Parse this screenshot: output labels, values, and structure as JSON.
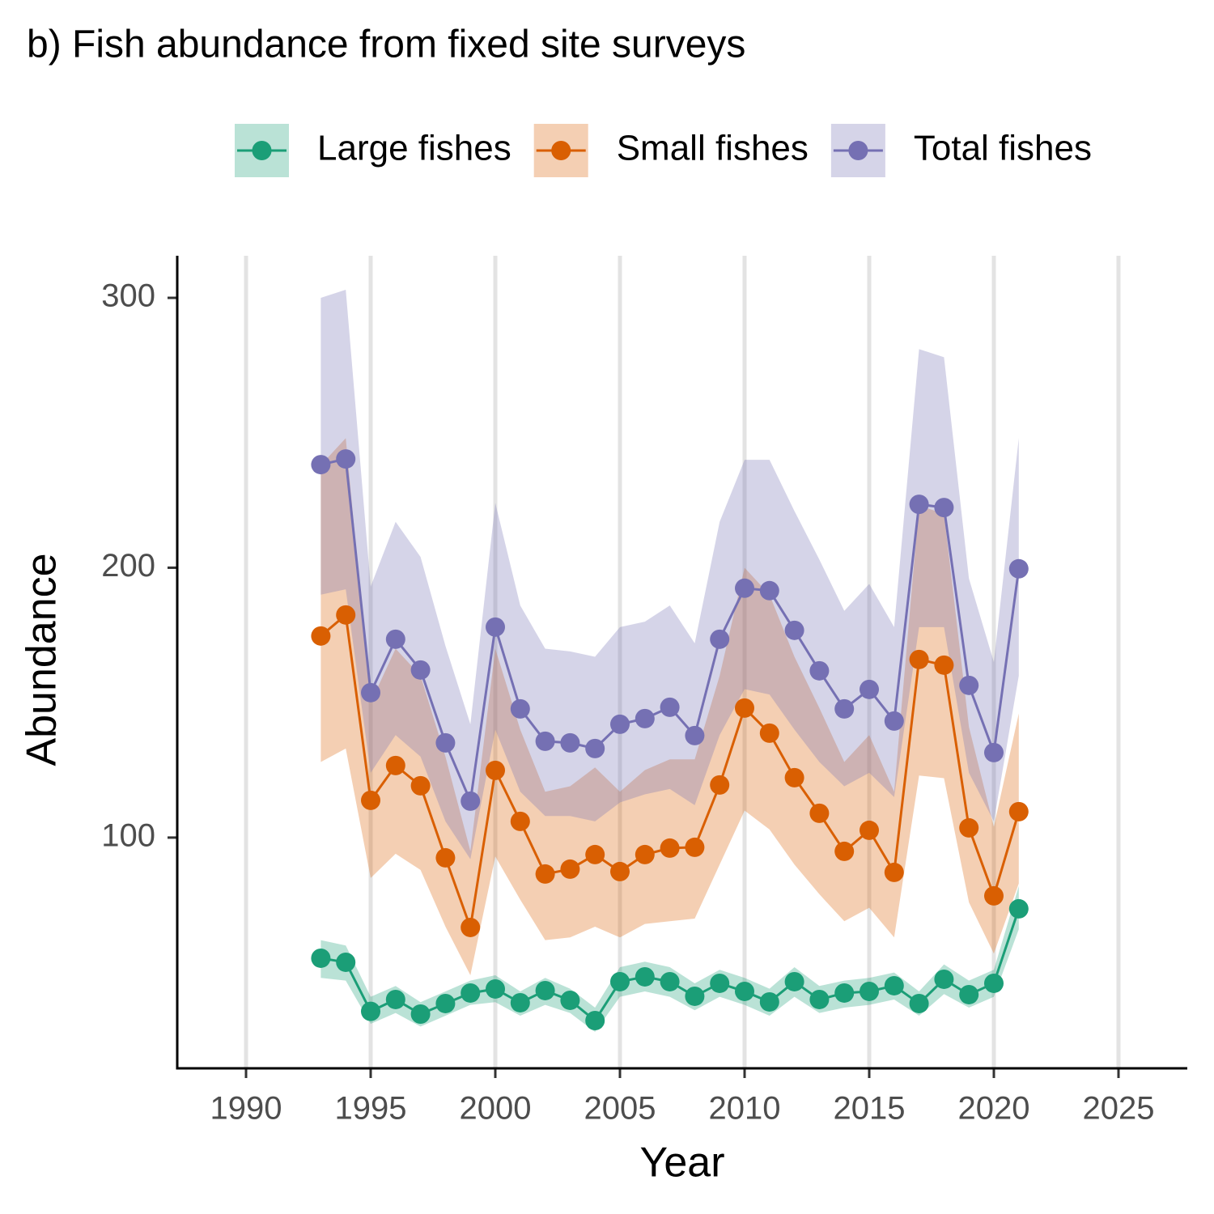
{
  "chart_data": {
    "type": "line",
    "title": "b) Fish abundance from fixed site surveys",
    "x_label": "Year",
    "y_label": "Abundance",
    "x": [
      1993,
      1994,
      1995,
      1996,
      1997,
      1998,
      1999,
      2000,
      2001,
      2002,
      2003,
      2004,
      2005,
      2006,
      2007,
      2008,
      2009,
      2010,
      2011,
      2012,
      2013,
      2014,
      2015,
      2016,
      2017,
      2018,
      2019,
      2020,
      2021
    ],
    "series": [
      {
        "name": "Large fishes",
        "color": "#1b9e77",
        "values": [
          55.3,
          53.8,
          35.6,
          40.0,
          34.6,
          38.5,
          42.4,
          43.9,
          38.8,
          43.3,
          39.7,
          32.2,
          46.6,
          48.4,
          46.6,
          41.2,
          46.0,
          43.0,
          39.1,
          46.6,
          40.0,
          42.4,
          43.0,
          45.1,
          38.5,
          47.5,
          41.8,
          46.0,
          73.6
        ],
        "upper": [
          62,
          60,
          41,
          45,
          39,
          43,
          47,
          49,
          43,
          48,
          44,
          37,
          52,
          54,
          52,
          46,
          51,
          48,
          44,
          52,
          45,
          47,
          48,
          50,
          43,
          53,
          47,
          51,
          82
        ],
        "lower": [
          48,
          47,
          31,
          35,
          30,
          34,
          38,
          39,
          34,
          38,
          35,
          28,
          41,
          43,
          41,
          36,
          41,
          38,
          34,
          41,
          35,
          37,
          38,
          40,
          34,
          42,
          37,
          41,
          66
        ]
      },
      {
        "name": "Small fishes",
        "color": "#d95f02",
        "values": [
          174.7,
          182.5,
          113.8,
          126.7,
          119.2,
          92.5,
          66.7,
          124.9,
          106.0,
          86.5,
          88.3,
          93.7,
          87.4,
          93.7,
          96.1,
          96.4,
          119.5,
          148.0,
          138.7,
          122.2,
          109.0,
          94.9,
          102.7,
          87.1,
          166.0,
          163.9,
          103.6,
          78.4,
          109.6
        ],
        "upper": [
          238,
          248,
          150,
          170,
          160,
          130,
          95,
          170,
          140,
          117,
          119,
          126,
          117,
          125,
          129,
          129,
          160,
          200,
          190,
          167,
          148,
          128,
          138,
          117,
          223,
          220,
          141,
          104,
          146
        ],
        "lower": [
          128,
          133,
          85,
          94,
          88,
          67,
          49,
          93,
          77,
          62,
          63,
          67,
          63,
          68,
          69,
          70,
          90,
          110,
          103,
          90,
          79,
          69,
          74,
          63,
          123,
          122,
          76,
          57,
          83
        ]
      },
      {
        "name": "Total fishes",
        "color": "#7570b3",
        "values": [
          238.2,
          240.3,
          153.7,
          173.5,
          162.1,
          135.1,
          113.5,
          178.0,
          147.7,
          135.7,
          135.1,
          133.0,
          142.0,
          144.1,
          148.3,
          137.8,
          173.5,
          192.4,
          191.5,
          176.8,
          161.8,
          147.7,
          154.9,
          143.2,
          223.5,
          222.3,
          156.4,
          131.5,
          199.6
        ],
        "upper": [
          300,
          303,
          193,
          217,
          204,
          171,
          142,
          224,
          186,
          170,
          169,
          167,
          178,
          180,
          186,
          172,
          217,
          240,
          240,
          221,
          203,
          184,
          194,
          178,
          281,
          278,
          196,
          165,
          248
        ],
        "lower": [
          190,
          192,
          124,
          138,
          130,
          106,
          92,
          140,
          117,
          108,
          108,
          106,
          113,
          116,
          118,
          112,
          138,
          155,
          153,
          140,
          128,
          119,
          124,
          115,
          178,
          178,
          124,
          106,
          160
        ]
      }
    ],
    "xlim": [
      1987.24,
      2027.76
    ],
    "xticks": [
      1990,
      1995,
      2000,
      2005,
      2010,
      2015,
      2020,
      2025
    ],
    "ylim": [
      14.5,
      315.6
    ],
    "yticks": [
      100,
      200,
      300
    ],
    "grid": "x",
    "legend": "top"
  }
}
